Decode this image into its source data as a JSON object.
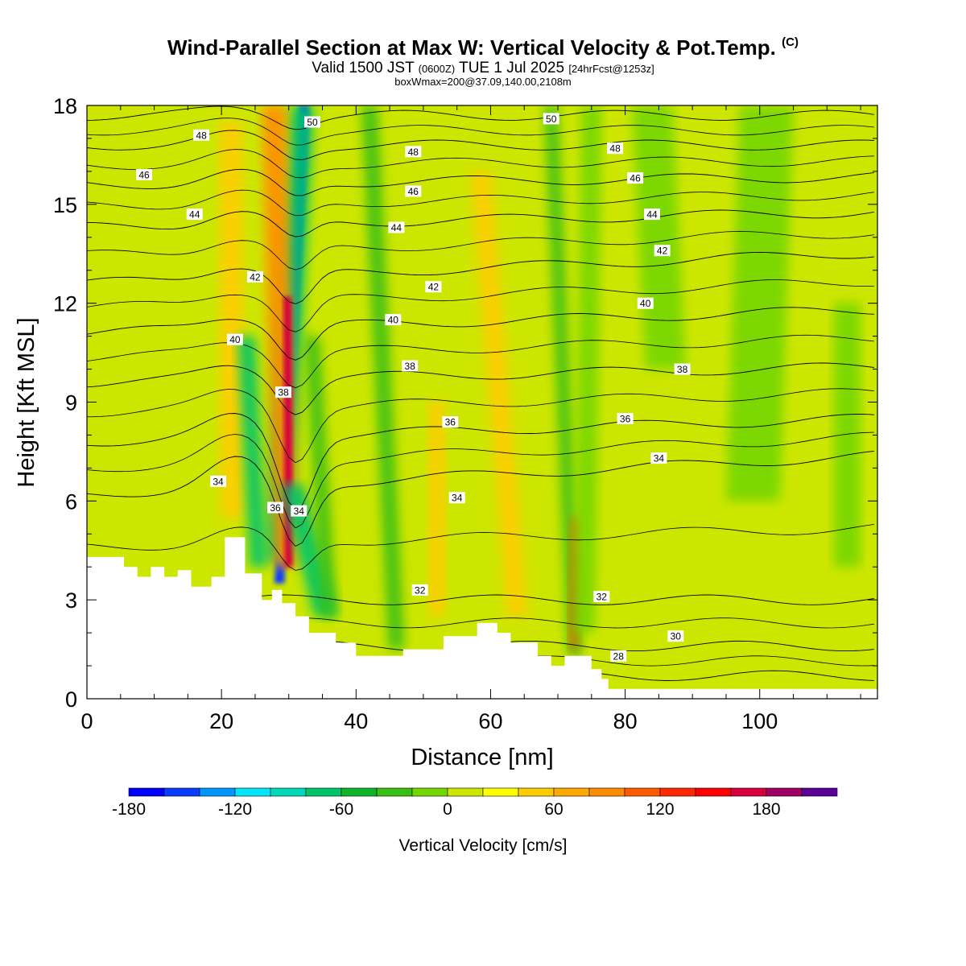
{
  "header": {
    "title": "Wind-Parallel Section at Max W: Vertical Velocity & Pot.Temp.",
    "copyright": "(C)",
    "valid_prefix": "Valid 1500 JST",
    "valid_utc": "(0600Z)",
    "valid_suffix": "TUE 1 Jul 2025",
    "forecast": "[24hrFcst@1253z]",
    "box_info": "boxWmax=200@37.09,140.00,2108m"
  },
  "chart_data": {
    "type": "heatmap",
    "title": "Wind-Parallel Section at Max W: Vertical Velocity & Pot.Temp.",
    "xlabel": "Distance [nm]",
    "ylabel": "Height [Kft MSL]",
    "xlim": [
      0,
      117.5
    ],
    "ylim": [
      0,
      18
    ],
    "x_ticks": [
      {
        "value": 0,
        "label": "0"
      },
      {
        "value": 20,
        "label": "20"
      },
      {
        "value": 40,
        "label": "40"
      },
      {
        "value": 60,
        "label": "60"
      },
      {
        "value": 80,
        "label": "80"
      },
      {
        "value": 100,
        "label": "100"
      }
    ],
    "y_ticks": [
      {
        "value": 0,
        "label": "0"
      },
      {
        "value": 3,
        "label": "3"
      },
      {
        "value": 6,
        "label": "6"
      },
      {
        "value": 9,
        "label": "9"
      },
      {
        "value": 12,
        "label": "12"
      },
      {
        "value": 15,
        "label": "15"
      },
      {
        "value": 18,
        "label": "18"
      }
    ],
    "colorbar": {
      "title": "Vertical Velocity [cm/s]",
      "min": -180,
      "max": 220,
      "colors": [
        "#0000ff",
        "#0a3cff",
        "#0096ff",
        "#00e6ff",
        "#00d8b8",
        "#00c46a",
        "#10b32a",
        "#39be14",
        "#74d600",
        "#cde600",
        "#ffff00",
        "#ffcc00",
        "#ffa800",
        "#ff8c00",
        "#ff5a00",
        "#ff2800",
        "#ff0000",
        "#d7003c",
        "#a00064",
        "#5a0096"
      ],
      "labels": [
        {
          "value": -180,
          "label": "-180"
        },
        {
          "value": -120,
          "label": "-120"
        },
        {
          "value": -60,
          "label": "-60"
        },
        {
          "value": 0,
          "label": "0"
        },
        {
          "value": 60,
          "label": "60"
        },
        {
          "value": 120,
          "label": "120"
        },
        {
          "value": 180,
          "label": "180"
        }
      ]
    },
    "background_value_color": "#cde600",
    "terrain": [
      [
        0,
        4.3
      ],
      [
        5.5,
        4.3
      ],
      [
        5.5,
        4.0
      ],
      [
        7.5,
        4.0
      ],
      [
        7.5,
        3.7
      ],
      [
        9.5,
        3.7
      ],
      [
        9.5,
        4.0
      ],
      [
        11.5,
        4.0
      ],
      [
        11.5,
        3.7
      ],
      [
        13.5,
        3.7
      ],
      [
        13.5,
        3.9
      ],
      [
        15.5,
        3.9
      ],
      [
        15.5,
        3.4
      ],
      [
        18.5,
        3.4
      ],
      [
        18.5,
        3.7
      ],
      [
        20.5,
        3.7
      ],
      [
        20.5,
        4.9
      ],
      [
        23.5,
        4.9
      ],
      [
        23.5,
        3.8
      ],
      [
        26,
        3.8
      ],
      [
        26,
        3.0
      ],
      [
        27.5,
        3.0
      ],
      [
        27.5,
        3.3
      ],
      [
        29,
        3.3
      ],
      [
        29,
        2.9
      ],
      [
        31,
        2.9
      ],
      [
        31,
        2.5
      ],
      [
        33,
        2.5
      ],
      [
        33,
        2.0
      ],
      [
        37,
        2.0
      ],
      [
        37,
        1.7
      ],
      [
        40,
        1.7
      ],
      [
        40,
        1.3
      ],
      [
        47,
        1.3
      ],
      [
        47,
        1.5
      ],
      [
        53,
        1.5
      ],
      [
        53,
        1.9
      ],
      [
        58,
        1.9
      ],
      [
        58,
        2.3
      ],
      [
        61,
        2.3
      ],
      [
        61,
        2.0
      ],
      [
        63,
        2.0
      ],
      [
        63,
        1.7
      ],
      [
        67,
        1.7
      ],
      [
        67,
        1.3
      ],
      [
        69,
        1.3
      ],
      [
        69,
        1.0
      ],
      [
        71,
        1.0
      ],
      [
        71,
        1.3
      ],
      [
        75,
        1.3
      ],
      [
        75,
        0.9
      ],
      [
        76.5,
        0.9
      ],
      [
        76.5,
        0.6
      ],
      [
        77.5,
        0.6
      ],
      [
        77.5,
        0.3
      ],
      [
        117.5,
        0.3
      ]
    ],
    "w_features": [
      {
        "x": 32.3,
        "y0": 18,
        "x1": 28.6,
        "y1": 3.5,
        "w": 1.5,
        "value": -160
      },
      {
        "x": 32.0,
        "y0": 18,
        "x1": 28.4,
        "y1": 4.2,
        "w": 3.6,
        "value": -80
      },
      {
        "x": 27.8,
        "y0": 18,
        "x1": 29.6,
        "y1": 4.0,
        "w": 3.6,
        "value": 80
      },
      {
        "x": 29.8,
        "y0": 12.2,
        "x1": 30.0,
        "y1": 4.0,
        "w": 1.2,
        "value": 160
      },
      {
        "x": 21.4,
        "y0": 17.5,
        "x1": 21.6,
        "y1": 5.5,
        "w": 3.4,
        "value": 40
      },
      {
        "x": 23.7,
        "y0": 11.0,
        "x1": 25.5,
        "y1": 4.0,
        "w": 2.6,
        "value": -80
      },
      {
        "x": 30.5,
        "y0": 6.5,
        "x1": 35.5,
        "y1": 2.5,
        "w": 3.5,
        "value": -70
      },
      {
        "x": 33.5,
        "y0": 11.0,
        "x1": 36.0,
        "y1": 2.5,
        "w": 2.2,
        "value": -40
      },
      {
        "x": 42.0,
        "y0": 18,
        "x1": 46.0,
        "y1": 1.5,
        "w": 2.4,
        "value": -30
      },
      {
        "x": 52.0,
        "y0": 9.0,
        "x1": 52.0,
        "y1": 2.5,
        "w": 2.4,
        "value": 40
      },
      {
        "x": 58.5,
        "y0": 16.0,
        "x1": 64.0,
        "y1": 2.5,
        "w": 3.0,
        "value": 40
      },
      {
        "x": 69.0,
        "y0": 18,
        "x1": 72.5,
        "y1": 1.3,
        "w": 2.0,
        "value": -40
      },
      {
        "x": 72.8,
        "y0": 5.5,
        "x1": 72.3,
        "y1": 1.5,
        "w": 1.2,
        "value": 100
      },
      {
        "x": 75.0,
        "y0": 18,
        "x1": 74.0,
        "y1": 2.0,
        "w": 3.0,
        "value": -20
      },
      {
        "x": 84.0,
        "y0": 18,
        "x1": 86.0,
        "y1": 10.0,
        "w": 6.0,
        "value": -20
      },
      {
        "x": 101.0,
        "y0": 18,
        "x1": 99.0,
        "y1": 6.0,
        "w": 8.0,
        "value": -20
      },
      {
        "x": 113.0,
        "y0": 12.0,
        "x1": 113.0,
        "y1": 4.0,
        "w": 4.0,
        "value": -20
      }
    ],
    "theta_contour_labels": [
      {
        "x": 33.5,
        "y": 17.5,
        "label": "50"
      },
      {
        "x": 69.0,
        "y": 17.6,
        "label": "50"
      },
      {
        "x": 17.0,
        "y": 17.1,
        "label": "48"
      },
      {
        "x": 48.5,
        "y": 16.6,
        "label": "48"
      },
      {
        "x": 78.5,
        "y": 16.7,
        "label": "48"
      },
      {
        "x": 8.5,
        "y": 15.9,
        "label": "46"
      },
      {
        "x": 48.5,
        "y": 15.4,
        "label": "46"
      },
      {
        "x": 81.5,
        "y": 15.8,
        "label": "46"
      },
      {
        "x": 16.0,
        "y": 14.7,
        "label": "44"
      },
      {
        "x": 46.0,
        "y": 14.3,
        "label": "44"
      },
      {
        "x": 84.0,
        "y": 14.7,
        "label": "44"
      },
      {
        "x": 25.0,
        "y": 12.8,
        "label": "42"
      },
      {
        "x": 51.5,
        "y": 12.5,
        "label": "42"
      },
      {
        "x": 85.5,
        "y": 13.6,
        "label": "42"
      },
      {
        "x": 22.0,
        "y": 10.9,
        "label": "40"
      },
      {
        "x": 45.5,
        "y": 11.5,
        "label": "40"
      },
      {
        "x": 83.0,
        "y": 12.0,
        "label": "40"
      },
      {
        "x": 29.2,
        "y": 9.3,
        "label": "38"
      },
      {
        "x": 48.0,
        "y": 10.1,
        "label": "38"
      },
      {
        "x": 88.5,
        "y": 10.0,
        "label": "38"
      },
      {
        "x": 54.0,
        "y": 8.4,
        "label": "36"
      },
      {
        "x": 80.0,
        "y": 8.5,
        "label": "36"
      },
      {
        "x": 28.0,
        "y": 5.8,
        "label": "36"
      },
      {
        "x": 19.5,
        "y": 6.6,
        "label": "34"
      },
      {
        "x": 31.5,
        "y": 5.7,
        "label": "34"
      },
      {
        "x": 55.0,
        "y": 6.1,
        "label": "34"
      },
      {
        "x": 85.0,
        "y": 7.3,
        "label": "34"
      },
      {
        "x": 49.5,
        "y": 3.3,
        "label": "32"
      },
      {
        "x": 76.5,
        "y": 3.1,
        "label": "32"
      },
      {
        "x": 87.5,
        "y": 1.9,
        "label": "30"
      },
      {
        "x": 79.0,
        "y": 1.3,
        "label": "28"
      }
    ],
    "theta_levels": [
      {
        "label": "28",
        "base": 0.7,
        "slope": 0.0,
        "ridge": 0.0,
        "dip": 0.0
      },
      {
        "label": "30",
        "base": 1.6,
        "slope": 0.0,
        "ridge": 0.0,
        "dip": 0.0
      },
      {
        "label": "32",
        "base": 3.0,
        "slope": 0.0,
        "ridge": 0.0,
        "dip": 0.0
      },
      {
        "label": "34",
        "base": 6.2,
        "slope": 0.01,
        "ridge": 0.8,
        "dip": 2.0
      },
      {
        "label": "36",
        "base": 7.8,
        "slope": 0.006,
        "ridge": 0.6,
        "dip": 2.2
      },
      {
        "label": "38",
        "base": 9.6,
        "slope": 0.004,
        "ridge": 0.4,
        "dip": 1.0
      },
      {
        "label": "40",
        "base": 11.1,
        "slope": 0.006,
        "ridge": 0.4,
        "dip": 1.0
      },
      {
        "label": "42",
        "base": 12.6,
        "slope": 0.008,
        "ridge": 0.4,
        "dip": 1.0
      },
      {
        "label": "44",
        "base": 14.3,
        "slope": 0.004,
        "ridge": 0.4,
        "dip": 0.6
      },
      {
        "label": "46",
        "base": 15.6,
        "slope": 0.002,
        "ridge": 0.3,
        "dip": 0.5
      },
      {
        "label": "48",
        "base": 16.8,
        "slope": 0.0,
        "ridge": 0.3,
        "dip": 0.4
      },
      {
        "label": "50",
        "base": 17.7,
        "slope": 0.0,
        "ridge": 0.2,
        "dip": 0.3
      }
    ]
  }
}
